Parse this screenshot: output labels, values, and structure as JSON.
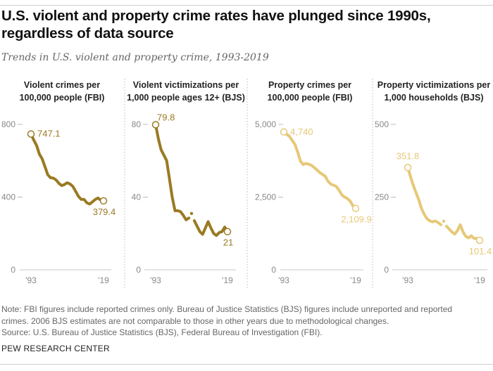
{
  "title": "U.S. violent and property crime rates have plunged since 1990s, regardless of data source",
  "subtitle": "Trends in U.S. violent and property crime, 1993-2019",
  "notes": [
    "Note: FBI figures include reported crimes only. Bureau of Justice Statistics (BJS) figures include unreported and reported",
    "crimes. 2006 BJS estimates are not comparable to those in other years due to methodological changes.",
    "Source: U.S. Bureau of Justice Statistics (BJS), Federal Bureau of Investigation (FBI)."
  ],
  "brand": "PEW RESEARCH CENTER",
  "colors": {
    "violent": "#9a7a22",
    "property": "#e6c877",
    "axis": "#dcdcdc",
    "tick_text": "#888888"
  },
  "chart_data": [
    {
      "type": "line",
      "title_lines": [
        "Violent crimes per",
        "100,000 people (FBI)"
      ],
      "x": [
        1993,
        1994,
        1995,
        1996,
        1997,
        1998,
        1999,
        2000,
        2001,
        2002,
        2003,
        2004,
        2005,
        2006,
        2007,
        2008,
        2009,
        2010,
        2011,
        2012,
        2013,
        2014,
        2015,
        2016,
        2017,
        2018,
        2019
      ],
      "values": [
        747.1,
        713.6,
        684.5,
        636.6,
        611.0,
        567.6,
        523.0,
        506.5,
        504.5,
        494.4,
        475.8,
        463.2,
        469.0,
        479.3,
        471.8,
        458.6,
        431.9,
        404.5,
        387.1,
        387.8,
        369.1,
        361.6,
        373.7,
        386.3,
        394.9,
        383.4,
        379.4
      ],
      "ylim": [
        0,
        800
      ],
      "yticks": [
        "0",
        "400",
        "800"
      ],
      "ytick_values": [
        0,
        400,
        800
      ],
      "xtick_labels": [
        "'93",
        "'19"
      ],
      "start_label": "747.1",
      "end_label": "379.4",
      "color": "#9a7a22"
    },
    {
      "type": "line",
      "title_lines": [
        "Violent victimizations per",
        "1,000 people ages 12+ (BJS)"
      ],
      "x": [
        1993,
        1994,
        1995,
        1996,
        1997,
        1998,
        1999,
        2000,
        2001,
        2002,
        2003,
        2004,
        2005,
        2006,
        2007,
        2008,
        2009,
        2010,
        2011,
        2012,
        2013,
        2014,
        2015,
        2016,
        2017,
        2018,
        2019
      ],
      "values": [
        79.8,
        72,
        66,
        63,
        60,
        50,
        40,
        32.5,
        32.5,
        32,
        30,
        27.5,
        28.5,
        null,
        27,
        24,
        21,
        19.5,
        23,
        26.5,
        23,
        20,
        18.9,
        20.5,
        21,
        23.5,
        21
      ],
      "separate_point": {
        "x": 2006,
        "value": 31
      },
      "ylim": [
        0,
        80
      ],
      "yticks": [
        "0",
        "40",
        "80"
      ],
      "ytick_values": [
        0,
        40,
        80
      ],
      "xtick_labels": [
        "'93",
        "'19"
      ],
      "start_label": "79.8",
      "end_label": "21",
      "color": "#9a7a22"
    },
    {
      "type": "line",
      "title_lines": [
        "Property crimes per",
        "100,000 people (FBI)"
      ],
      "x": [
        1993,
        1994,
        1995,
        1996,
        1997,
        1998,
        1999,
        2000,
        2001,
        2002,
        2003,
        2004,
        2005,
        2006,
        2007,
        2008,
        2009,
        2010,
        2011,
        2012,
        2013,
        2014,
        2015,
        2016,
        2017,
        2018,
        2019
      ],
      "values": [
        4740,
        4660,
        4591,
        4451,
        4316,
        4052,
        3743,
        3618,
        3658,
        3631,
        3591,
        3514,
        3432,
        3346,
        3277,
        3215,
        3041,
        2946,
        2905,
        2868,
        2733,
        2574,
        2500,
        2451,
        2362,
        2200,
        2109.9
      ],
      "ylim": [
        0,
        5000
      ],
      "yticks": [
        "0",
        "2,500",
        "5,000"
      ],
      "ytick_values": [
        0,
        2500,
        5000
      ],
      "xtick_labels": [
        "'93",
        "'19"
      ],
      "start_label": "4,740",
      "end_label": "2,109.9",
      "color": "#e6c877"
    },
    {
      "type": "line",
      "title_lines": [
        "Property victimizations per",
        "1,000 households (BJS)"
      ],
      "x": [
        1993,
        1994,
        1995,
        1996,
        1997,
        1998,
        1999,
        2000,
        2001,
        2002,
        2003,
        2004,
        2005,
        2006,
        2007,
        2008,
        2009,
        2010,
        2011,
        2012,
        2013,
        2014,
        2015,
        2016,
        2017,
        2018,
        2019
      ],
      "values": [
        351.8,
        320,
        290,
        265,
        240,
        210,
        190,
        175,
        168,
        165,
        168,
        162,
        155,
        null,
        150,
        140,
        130,
        123,
        135,
        155,
        130,
        115,
        110,
        117,
        108,
        108,
        101.4
      ],
      "separate_point": {
        "x": 2006,
        "value": 167
      },
      "ylim": [
        0,
        500
      ],
      "yticks": [
        "0",
        "250",
        "500"
      ],
      "ytick_values": [
        0,
        250,
        500
      ],
      "xtick_labels": [
        "'93",
        "'19"
      ],
      "start_label": "351.8",
      "end_label": "101.4",
      "color": "#e6c877"
    }
  ]
}
